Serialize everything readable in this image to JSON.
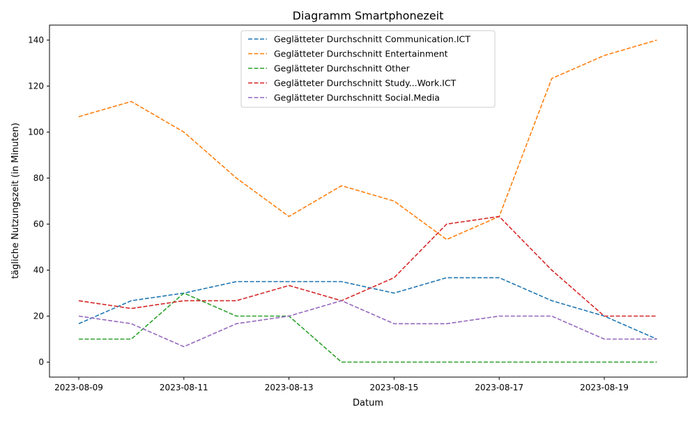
{
  "chart_data": {
    "type": "line",
    "title": "Diagramm Smartphonezeit",
    "xlabel": "Datum",
    "ylabel": "tägliche Nutzungszeit (in Minuten)",
    "x": [
      "2023-08-09",
      "2023-08-10",
      "2023-08-11",
      "2023-08-12",
      "2023-08-13",
      "2023-08-14",
      "2023-08-15",
      "2023-08-16",
      "2023-08-17",
      "2023-08-18",
      "2023-08-19",
      "2023-08-20"
    ],
    "x_ticks": [
      "2023-08-09",
      "2023-08-11",
      "2023-08-13",
      "2023-08-15",
      "2023-08-17",
      "2023-08-19"
    ],
    "y_ticks": [
      0,
      20,
      40,
      60,
      80,
      100,
      120,
      140
    ],
    "ylim": [
      -6.5,
      146.5
    ],
    "grid": false,
    "legend_position": "top-center",
    "line_style": "dashed",
    "series": [
      {
        "name": "Geglätteter Durchschnitt Communication.ICT",
        "color": "#1f77b4",
        "values": [
          16.7,
          26.7,
          30,
          35,
          35,
          35,
          30,
          36.7,
          36.7,
          26.7,
          20,
          10
        ]
      },
      {
        "name": "Geglätteter Durchschnitt Entertainment",
        "color": "#ff7f0e",
        "values": [
          106.7,
          113.3,
          100,
          80,
          63.3,
          76.7,
          70,
          53.3,
          63.3,
          123.3,
          133.3,
          140
        ]
      },
      {
        "name": "Geglätteter Durchschnitt Other",
        "color": "#2ca02c",
        "values": [
          10,
          10,
          30,
          20,
          20,
          0,
          0,
          0,
          0,
          0,
          0,
          0
        ]
      },
      {
        "name": "Geglätteter Durchschnitt Study...Work.ICT",
        "color": "#d62728",
        "values": [
          26.7,
          23.3,
          26.7,
          26.7,
          33.3,
          26.7,
          36.7,
          60,
          63.3,
          40,
          20,
          20
        ]
      },
      {
        "name": "Geglätteter Durchschnitt Social.Media",
        "color": "#9467bd",
        "values": [
          20,
          16.7,
          6.7,
          16.7,
          20,
          26.7,
          16.7,
          16.7,
          20,
          20,
          10,
          10
        ]
      }
    ]
  }
}
